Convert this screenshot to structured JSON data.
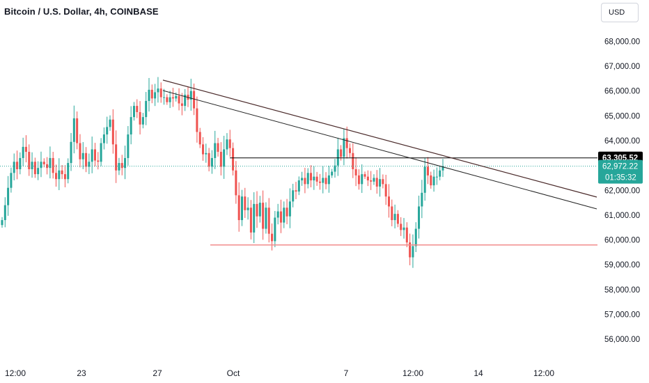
{
  "header": {
    "title": "Bitcoin / U.S. Dollar, 4h, COINBASE",
    "currency": "USD"
  },
  "colors": {
    "up": "#26a69a",
    "down": "#ef5350",
    "support": "#f28b8b",
    "trend": "#4a2a2a",
    "price_line": "#26a69a"
  },
  "chart_data": {
    "type": "candlestick",
    "ylim": [
      55500,
      68600
    ],
    "y_ticks": [
      "56,000.00",
      "57,000.00",
      "58,000.00",
      "59,000.00",
      "60,000.00",
      "61,000.00",
      "62,000.00",
      "63,000.00",
      "64,000.00",
      "65,000.00",
      "66,000.00",
      "67,000.00",
      "68,000.00"
    ],
    "y_tick_values": [
      56000,
      57000,
      58000,
      59000,
      60000,
      61000,
      62000,
      63000,
      64000,
      65000,
      66000,
      67000,
      68000
    ],
    "x_ticks": [
      "12:00",
      "23",
      "27",
      "Oct",
      "7",
      "12:00",
      "14",
      "12:00"
    ],
    "price_tags": {
      "level": {
        "label": "63,305.52",
        "value": 63305.52
      },
      "last": {
        "label": "62,972.22",
        "countdown": "01:35:32",
        "value": 62972.22
      }
    },
    "support_level": 59800,
    "series": [
      {
        "name": "BTCUSD",
        "close": [
          60800,
          61400,
          62100,
          62700,
          63150,
          62850,
          63300,
          63750,
          63550,
          62850,
          63150,
          62650,
          62900,
          63150,
          63050,
          62900,
          63300,
          62700,
          62450,
          62800,
          62650,
          62450,
          63100,
          63950,
          64900,
          63900,
          63250,
          63500,
          62950,
          63150,
          63650,
          63200,
          63150,
          63900,
          64250,
          64550,
          64850,
          63850,
          62800,
          63100,
          62900,
          63300,
          64250,
          64950,
          65400,
          65150,
          64650,
          64950,
          65600,
          66050,
          65700,
          65950,
          66100,
          65750,
          65750,
          65550,
          65750,
          65700,
          65800,
          65500,
          65400,
          65850,
          65650,
          66000,
          65300,
          64350,
          63850,
          63450,
          63500,
          62950,
          63300,
          63900,
          63550,
          62950,
          63650,
          64050,
          63700,
          62800,
          61800,
          60800,
          61750,
          61200,
          61300,
          60300,
          61450,
          60950,
          61500,
          60450,
          61300,
          60250,
          59950,
          60900,
          61150,
          60700,
          61300,
          60950,
          61550,
          62000,
          61950,
          62400,
          62500,
          62250,
          62700,
          62400,
          62550,
          62350,
          62300,
          62500,
          62250,
          62600,
          62750,
          63000,
          63650,
          63350,
          64100,
          63700,
          63500,
          62850,
          62600,
          62250,
          62650,
          62550,
          62400,
          62350,
          62500,
          62150,
          62450,
          62250,
          61750,
          61350,
          60800,
          61050,
          60650,
          60400,
          60500,
          59900,
          59300,
          59750,
          60450,
          61350,
          61900,
          62950,
          62600,
          62200,
          62550,
          62550,
          62800,
          62972.22
        ]
      }
    ]
  }
}
